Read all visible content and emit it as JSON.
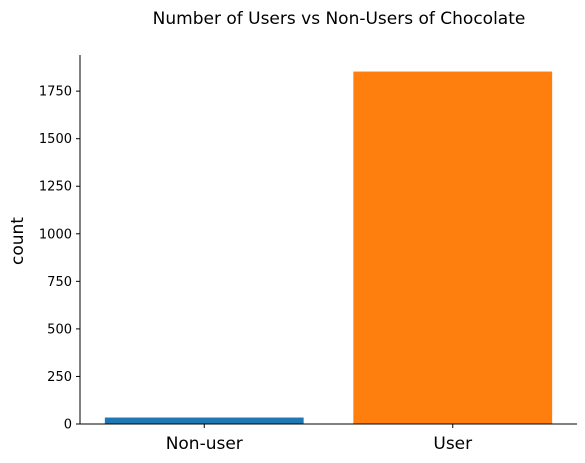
{
  "chart_data": {
    "type": "bar",
    "title": "Number of Users vs Non-Users of Chocolate",
    "xlabel": "",
    "ylabel": "count",
    "categories": [
      "Non-user",
      "User"
    ],
    "values": [
      34,
      1853
    ],
    "colors": [
      "#1f77b4",
      "#ff7f0e"
    ],
    "ylim": [
      0,
      1940
    ],
    "yticks": [
      0,
      250,
      500,
      750,
      1000,
      1250,
      1500,
      1750
    ],
    "grid": false,
    "legend": "none"
  }
}
